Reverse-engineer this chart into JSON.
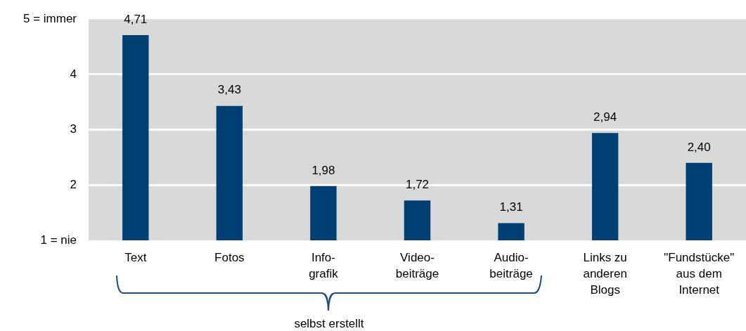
{
  "chart_data": {
    "type": "bar",
    "categories": [
      "Text",
      "Fotos",
      "Info-\ngrafik",
      "Video-\nbeiträge",
      "Audio-\nbeiträge",
      "Links zu\nanderen\nBlogs",
      "\"Fundstücke\"\naus dem\nInternet"
    ],
    "values": [
      4.71,
      3.43,
      1.98,
      1.72,
      1.31,
      2.94,
      2.4
    ],
    "value_labels": [
      "4,71",
      "3,43",
      "1,98",
      "1,72",
      "1,31",
      "2,94",
      "2,40"
    ],
    "color": "#003f74",
    "ylim": [
      1,
      5
    ],
    "yticks": [
      {
        "value": 1,
        "label": "1 = nie"
      },
      2,
      3,
      4,
      {
        "value": 5,
        "label": "5 = immer"
      }
    ],
    "grid": "y",
    "annotations": [
      "selbst erstellt"
    ]
  }
}
